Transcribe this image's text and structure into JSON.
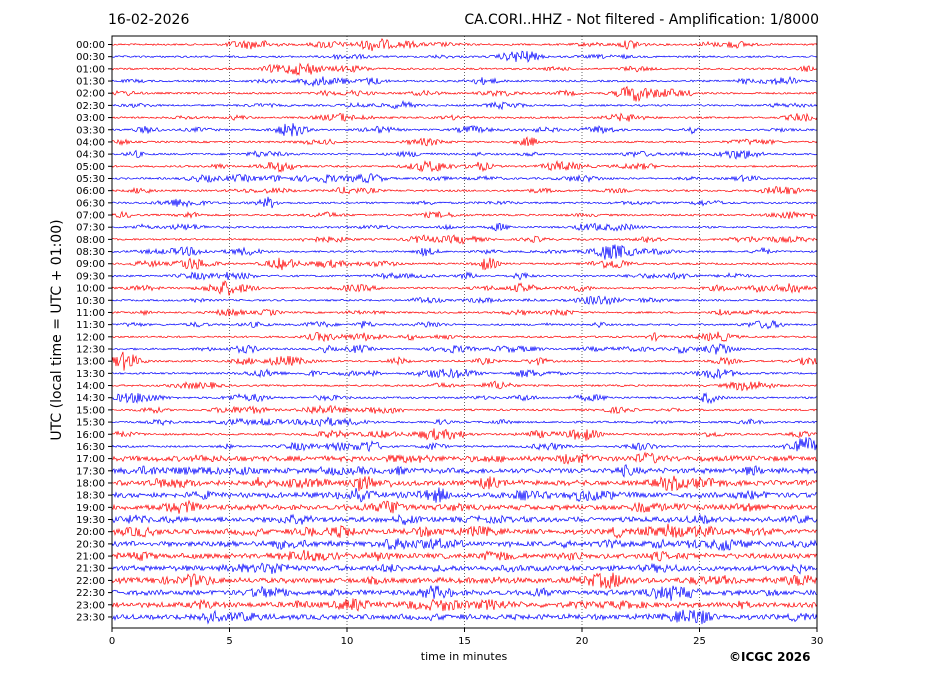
{
  "header": {
    "date": "16-02-2026",
    "title": "CA.CORI..HHZ - Not filtered - Amplification: 1/8000"
  },
  "footer": {
    "copyright": "©ICGC 2026"
  },
  "colors": {
    "trace_even": "#ff0000",
    "trace_odd": "#0000ff",
    "grid": "#000000"
  },
  "chart_data": {
    "type": "line",
    "xlabel": "time in minutes",
    "ylabel": "UTC (local time = UTC + 01:00)",
    "xlim": [
      0,
      30
    ],
    "x_ticks": [
      0,
      5,
      10,
      15,
      20,
      25,
      30
    ],
    "grid": "vertical dotted",
    "rows": [
      "00:00",
      "00:30",
      "01:00",
      "01:30",
      "02:00",
      "02:30",
      "03:00",
      "03:30",
      "04:00",
      "04:30",
      "05:00",
      "05:30",
      "06:00",
      "06:30",
      "07:00",
      "07:30",
      "08:00",
      "08:30",
      "09:00",
      "09:30",
      "10:00",
      "10:30",
      "11:00",
      "11:30",
      "12:00",
      "12:30",
      "13:00",
      "13:30",
      "14:00",
      "14:30",
      "15:00",
      "15:30",
      "16:00",
      "16:30",
      "17:00",
      "17:30",
      "18:00",
      "18:30",
      "19:00",
      "19:30",
      "20:00",
      "20:30",
      "21:00",
      "21:30",
      "22:00",
      "22:30",
      "23:00",
      "23:30"
    ],
    "row_noise_level": [
      1,
      1,
      1,
      1,
      1,
      1,
      1,
      1,
      1,
      1,
      1,
      1,
      1,
      1,
      1,
      1,
      1,
      1,
      1,
      1,
      1,
      1,
      1,
      1,
      1,
      1,
      1,
      1,
      1,
      1,
      1,
      1,
      1,
      1,
      2,
      2,
      2,
      2,
      2,
      2,
      2,
      2,
      2,
      2,
      2,
      2,
      2,
      2
    ],
    "series_colors": [
      "red",
      "blue"
    ]
  }
}
